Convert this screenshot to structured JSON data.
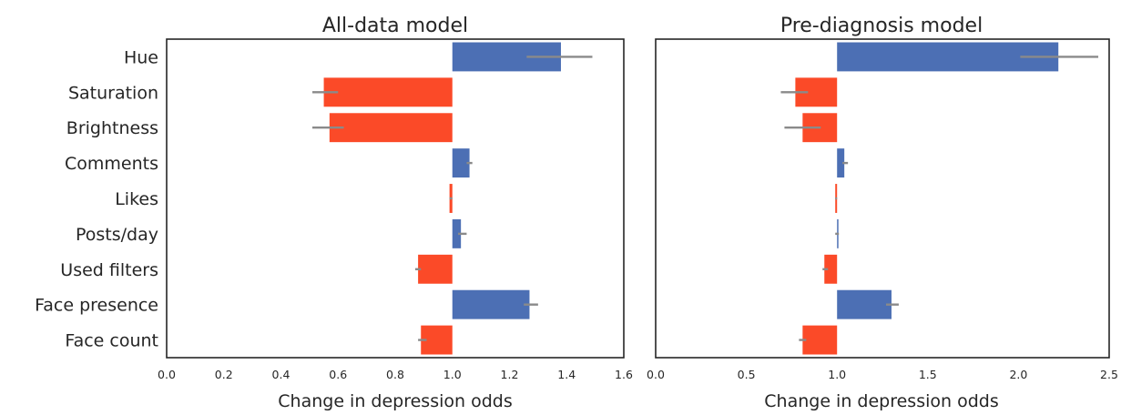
{
  "chart_data": [
    {
      "type": "bar",
      "orientation": "horizontal",
      "title": "All-data model",
      "xlabel": "Change in depression odds",
      "ylabel": "",
      "baseline": 1.0,
      "xlim": [
        0.0,
        1.6
      ],
      "xticks": [
        0.0,
        0.2,
        0.4,
        0.6,
        0.8,
        1.0,
        1.2,
        1.4,
        1.6
      ],
      "xtick_labels": [
        "0.0",
        "0.2",
        "0.4",
        "0.6",
        "0.8",
        "1.0",
        "1.2",
        "1.4",
        "1.6"
      ],
      "categories": [
        "Hue",
        "Saturation",
        "Brightness",
        "Comments",
        "Likes",
        "Posts/day",
        "Used filters",
        "Face presence",
        "Face count"
      ],
      "values": [
        1.38,
        0.55,
        0.57,
        1.06,
        0.99,
        1.03,
        0.88,
        1.27,
        0.89
      ],
      "error_low": [
        1.26,
        0.51,
        0.51,
        1.05,
        0.99,
        1.02,
        0.87,
        1.25,
        0.88
      ],
      "error_high": [
        1.49,
        0.6,
        0.62,
        1.07,
        1.0,
        1.05,
        0.89,
        1.3,
        0.91
      ],
      "colors": {
        "above": "#4c6fb4",
        "below": "#fb4a28",
        "error": "#8a8a8a"
      }
    },
    {
      "type": "bar",
      "orientation": "horizontal",
      "title": "Pre-diagnosis model",
      "xlabel": "Change in depression odds",
      "ylabel": "",
      "baseline": 1.0,
      "xlim": [
        0.0,
        2.5
      ],
      "xticks": [
        0.0,
        0.5,
        1.0,
        1.5,
        2.0,
        2.5
      ],
      "xtick_labels": [
        "0.0",
        "0.5",
        "1.0",
        "1.5",
        "2.0",
        "2.5"
      ],
      "categories": [
        "Hue",
        "Saturation",
        "Brightness",
        "Comments",
        "Likes",
        "Posts/day",
        "Used filters",
        "Face presence",
        "Face count"
      ],
      "values": [
        2.22,
        0.77,
        0.81,
        1.04,
        0.99,
        1.0,
        0.93,
        1.3,
        0.81
      ],
      "error_low": [
        2.01,
        0.69,
        0.71,
        1.03,
        0.99,
        0.99,
        0.92,
        1.27,
        0.79
      ],
      "error_high": [
        2.44,
        0.84,
        0.91,
        1.06,
        1.0,
        1.01,
        0.95,
        1.34,
        0.83
      ],
      "colors": {
        "above": "#4c6fb4",
        "below": "#fb4a28",
        "error": "#8a8a8a"
      }
    }
  ]
}
